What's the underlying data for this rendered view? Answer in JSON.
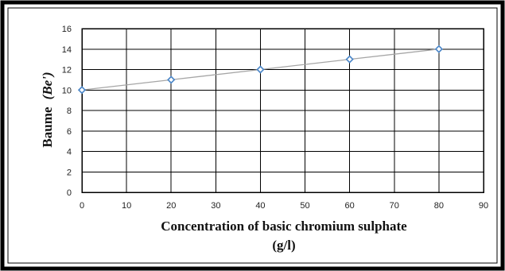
{
  "chart_data": {
    "type": "line",
    "xlabel_line1": "Concentration of basic chromium sulphate",
    "xlabel_line2": "(g/l)",
    "ylabel_main": "Baume",
    "ylabel_unit": "(Be')",
    "xlim": [
      0,
      90
    ],
    "ylim": [
      0,
      16
    ],
    "x_ticks": [
      0,
      10,
      20,
      30,
      40,
      50,
      60,
      70,
      80,
      90
    ],
    "y_ticks": [
      0,
      2,
      4,
      6,
      8,
      10,
      12,
      14,
      16
    ],
    "grid": true,
    "legend": "none",
    "series": [
      {
        "x": [
          0,
          20,
          40,
          60,
          80
        ],
        "y": [
          10,
          11,
          12,
          13,
          14
        ]
      }
    ],
    "colors": {
      "line": "#a6a6a6",
      "marker_stroke": "#4a86c8",
      "marker_fill": "#ffffff",
      "grid": "#000000",
      "frame": "#000000"
    }
  }
}
